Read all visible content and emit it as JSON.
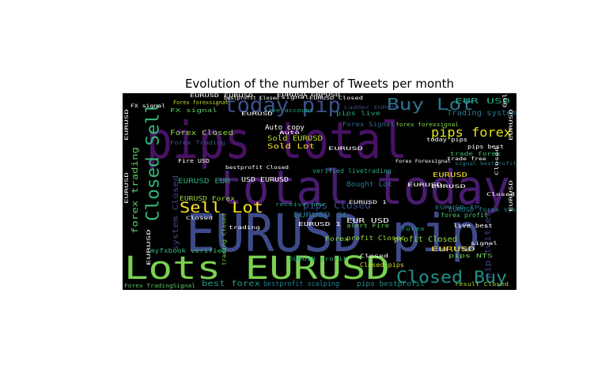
{
  "figure": {
    "title": "Evolution of the number of Tweets per month"
  },
  "wordcloud": {
    "background": "#000000",
    "words": [
      {
        "text": "pips total",
        "color": "#471164"
      },
      {
        "text": "EURUSD pip",
        "color": "#3e4a89"
      },
      {
        "text": "total today",
        "color": "#481c6e"
      },
      {
        "text": "Lots EURUSD",
        "color": "#7ad151"
      },
      {
        "text": "today pip",
        "color": "#3b528b"
      },
      {
        "text": "Buy Lot",
        "color": "#2c728e"
      },
      {
        "text": "Sell Lot",
        "color": "#fde725"
      },
      {
        "text": "Closed Sell",
        "color": "#35b779"
      },
      {
        "text": "Closed Buy",
        "color": "#21918c"
      },
      {
        "text": "pips forex",
        "color": "#dde318"
      },
      {
        "text": "EUR USD",
        "color": "#22a884"
      },
      {
        "text": "Sold EURUSD",
        "color": "#bddf26"
      },
      {
        "text": "Sold Lot",
        "color": "#fde725"
      },
      {
        "text": "Trading system",
        "color": "#2a788e"
      },
      {
        "text": "pips Closed",
        "color": "#3b528b"
      },
      {
        "text": "Forex Signal",
        "color": "#31688e"
      },
      {
        "text": "forex forexsignal",
        "color": "#86d549"
      },
      {
        "text": "Auto copy",
        "color": "#ffffff"
      },
      {
        "text": "profit Closed",
        "color": "#95d840"
      },
      {
        "text": "forex trading",
        "color": "#5ec962"
      },
      {
        "text": "system Closed",
        "color": "#3f4889"
      },
      {
        "text": "verified livetrading",
        "color": "#22a884"
      },
      {
        "text": "Bought Lot",
        "color": "#2c728e"
      },
      {
        "text": "best forex",
        "color": "#1f9e89"
      },
      {
        "text": "bestprofit scalping",
        "color": "#27808e"
      },
      {
        "text": "pips bestprofit",
        "color": "#21918c"
      },
      {
        "text": "pip twitter",
        "color": "#433e85"
      },
      {
        "text": "EURUSD EUR",
        "color": "#29af7f"
      },
      {
        "text": "EURUSD Forex",
        "color": "#a0da39"
      },
      {
        "text": "Forex Closed",
        "color": "#8fd744"
      },
      {
        "text": "Forex TradingSignal",
        "color": "#5ec962"
      },
      {
        "text": "Forex forexsignal",
        "color": "#b8de29"
      },
      {
        "text": "forex profit",
        "color": "#4ac16d"
      },
      {
        "text": "trade forex",
        "color": "#3dbc74"
      },
      {
        "text": "alert Fire",
        "color": "#6ece58"
      },
      {
        "text": "EURUSD SL",
        "color": "#2a788e"
      },
      {
        "text": "USD EURUSD",
        "color": "#ffffff"
      },
      {
        "text": "Fire USD",
        "color": "#ffffff"
      },
      {
        "text": "trading Closed",
        "color": "#7ad151"
      },
      {
        "text": "live account",
        "color": "#22a884"
      },
      {
        "text": "pips live",
        "color": "#20a386"
      },
      {
        "text": "EURUSD forex system",
        "color": "#26828e"
      },
      {
        "text": "EUR USD",
        "color": "#ffffff"
      },
      {
        "text": "EURUSD TP",
        "color": "#2d708e"
      },
      {
        "text": "receive now",
        "color": "#1fa088"
      },
      {
        "text": "myfxbook verified",
        "color": "#35b779"
      },
      {
        "text": "Closed pips",
        "color": "#c8e020"
      },
      {
        "text": "profit Closec",
        "color": "#9bd93c"
      },
      {
        "text": "pips NTS",
        "color": "#6ece58"
      },
      {
        "text": "result Closed",
        "color": "#a5db36"
      },
      {
        "text": "EURUSD profit",
        "color": "#2db27d"
      },
      {
        "text": "today pips",
        "color": "#ffffff"
      },
      {
        "text": "Forex Forexsignal",
        "color": "#ffffff"
      },
      {
        "text": "signal",
        "color": "#ffffff"
      },
      {
        "text": "pips best",
        "color": "#ffffff"
      },
      {
        "text": "trade free",
        "color": "#ffffff"
      },
      {
        "text": "FX signal",
        "color": "#5ec962"
      },
      {
        "text": "Forex Trading",
        "color": "#3b528b"
      },
      {
        "text": "EURUSD Closed",
        "color": "#ffffff"
      },
      {
        "text": "Ladder EURUSD",
        "color": "#3e4a89"
      },
      {
        "text": "Gold",
        "color": "#ffffff"
      },
      {
        "text": "EURUSD",
        "color": "#fde725"
      },
      {
        "text": "signal bestprofit",
        "color": "#2a788e"
      },
      {
        "text": "Closed",
        "color": "#ffffff"
      },
      {
        "text": "live best",
        "color": "#ffffff"
      },
      {
        "text": "FX signal",
        "color": "#ffffff"
      },
      {
        "text": "trading",
        "color": "#ffffff"
      },
      {
        "text": "Forex",
        "color": "#8fd744"
      },
      {
        "text": "forex",
        "color": "#20a386"
      },
      {
        "text": "EURUSD",
        "color": "#fde725"
      },
      {
        "text": "EURUSD 1",
        "color": "#ffffff"
      },
      {
        "text": "bestprofit Closed",
        "color": "#ffffff"
      },
      {
        "text": "EURUSD EURUSD",
        "color": "#ffffff"
      },
      {
        "text": "EURUSD GBPUSD",
        "color": "#ffffff"
      },
      {
        "text": "EURUSD",
        "color": "#ffffff"
      },
      {
        "text": "EURUSD",
        "color": "#ffffff"
      },
      {
        "text": "EURUSD",
        "color": "#ffffff"
      },
      {
        "text": "EURUSD",
        "color": "#ffffff"
      },
      {
        "text": "bestprofit Closed",
        "color": "#ffffff"
      },
      {
        "text": "Closed",
        "color": "#ffffff"
      },
      {
        "text": "Auto",
        "color": "#ffffff"
      },
      {
        "text": "EURUSD",
        "color": "#ffffff"
      },
      {
        "text": "Closed",
        "color": "#ffffff"
      },
      {
        "text": "EURUSD",
        "color": "#ffffff"
      },
      {
        "text": "signal",
        "color": "#ffffff"
      },
      {
        "text": "EURUSD",
        "color": "#ffffff"
      },
      {
        "text": "EURUSD 1",
        "color": "#ffffff"
      },
      {
        "text": "EURUSD",
        "color": "#ffffff"
      },
      {
        "text": "EURUSD",
        "color": "#ffffff"
      },
      {
        "text": "Closed",
        "color": "#ffffff"
      }
    ]
  }
}
